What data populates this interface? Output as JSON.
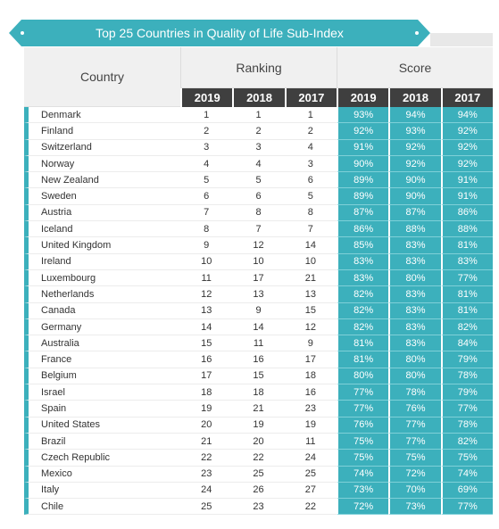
{
  "title": "Top 25 Countries in Quality of Life Sub-Index",
  "headers": {
    "country": "Country",
    "ranking": "Ranking",
    "score": "Score",
    "years": [
      "2019",
      "2018",
      "2017"
    ]
  },
  "colors": {
    "accent": "#3cb0bc",
    "header_dark": "#3f3f3f"
  },
  "rows": [
    {
      "country": "Denmark",
      "rank": [
        "1",
        "1",
        "1"
      ],
      "score": [
        "93%",
        "94%",
        "94%"
      ]
    },
    {
      "country": "Finland",
      "rank": [
        "2",
        "2",
        "2"
      ],
      "score": [
        "92%",
        "93%",
        "92%"
      ]
    },
    {
      "country": "Switzerland",
      "rank": [
        "3",
        "3",
        "4"
      ],
      "score": [
        "91%",
        "92%",
        "92%"
      ]
    },
    {
      "country": "Norway",
      "rank": [
        "4",
        "4",
        "3"
      ],
      "score": [
        "90%",
        "92%",
        "92%"
      ]
    },
    {
      "country": "New Zealand",
      "rank": [
        "5",
        "5",
        "6"
      ],
      "score": [
        "89%",
        "90%",
        "91%"
      ]
    },
    {
      "country": "Sweden",
      "rank": [
        "6",
        "6",
        "5"
      ],
      "score": [
        "89%",
        "90%",
        "91%"
      ]
    },
    {
      "country": "Austria",
      "rank": [
        "7",
        "8",
        "8"
      ],
      "score": [
        "87%",
        "87%",
        "86%"
      ]
    },
    {
      "country": "Iceland",
      "rank": [
        "8",
        "7",
        "7"
      ],
      "score": [
        "86%",
        "88%",
        "88%"
      ]
    },
    {
      "country": "United Kingdom",
      "rank": [
        "9",
        "12",
        "14"
      ],
      "score": [
        "85%",
        "83%",
        "81%"
      ]
    },
    {
      "country": "Ireland",
      "rank": [
        "10",
        "10",
        "10"
      ],
      "score": [
        "83%",
        "83%",
        "83%"
      ]
    },
    {
      "country": "Luxembourg",
      "rank": [
        "11",
        "17",
        "21"
      ],
      "score": [
        "83%",
        "80%",
        "77%"
      ]
    },
    {
      "country": "Netherlands",
      "rank": [
        "12",
        "13",
        "13"
      ],
      "score": [
        "82%",
        "83%",
        "81%"
      ]
    },
    {
      "country": "Canada",
      "rank": [
        "13",
        "9",
        "15"
      ],
      "score": [
        "82%",
        "83%",
        "81%"
      ]
    },
    {
      "country": "Germany",
      "rank": [
        "14",
        "14",
        "12"
      ],
      "score": [
        "82%",
        "83%",
        "82%"
      ]
    },
    {
      "country": "Australia",
      "rank": [
        "15",
        "11",
        "9"
      ],
      "score": [
        "81%",
        "83%",
        "84%"
      ]
    },
    {
      "country": "France",
      "rank": [
        "16",
        "16",
        "17"
      ],
      "score": [
        "81%",
        "80%",
        "79%"
      ]
    },
    {
      "country": "Belgium",
      "rank": [
        "17",
        "15",
        "18"
      ],
      "score": [
        "80%",
        "80%",
        "78%"
      ]
    },
    {
      "country": "Israel",
      "rank": [
        "18",
        "18",
        "16"
      ],
      "score": [
        "77%",
        "78%",
        "79%"
      ]
    },
    {
      "country": "Spain",
      "rank": [
        "19",
        "21",
        "23"
      ],
      "score": [
        "77%",
        "76%",
        "77%"
      ]
    },
    {
      "country": "United States",
      "rank": [
        "20",
        "19",
        "19"
      ],
      "score": [
        "76%",
        "77%",
        "78%"
      ]
    },
    {
      "country": "Brazil",
      "rank": [
        "21",
        "20",
        "11"
      ],
      "score": [
        "75%",
        "77%",
        "82%"
      ]
    },
    {
      "country": "Czech Republic",
      "rank": [
        "22",
        "22",
        "24"
      ],
      "score": [
        "75%",
        "75%",
        "75%"
      ]
    },
    {
      "country": "Mexico",
      "rank": [
        "23",
        "25",
        "25"
      ],
      "score": [
        "74%",
        "72%",
        "74%"
      ]
    },
    {
      "country": "Italy",
      "rank": [
        "24",
        "26",
        "27"
      ],
      "score": [
        "73%",
        "70%",
        "69%"
      ]
    },
    {
      "country": "Chile",
      "rank": [
        "25",
        "23",
        "22"
      ],
      "score": [
        "72%",
        "73%",
        "77%"
      ]
    }
  ]
}
